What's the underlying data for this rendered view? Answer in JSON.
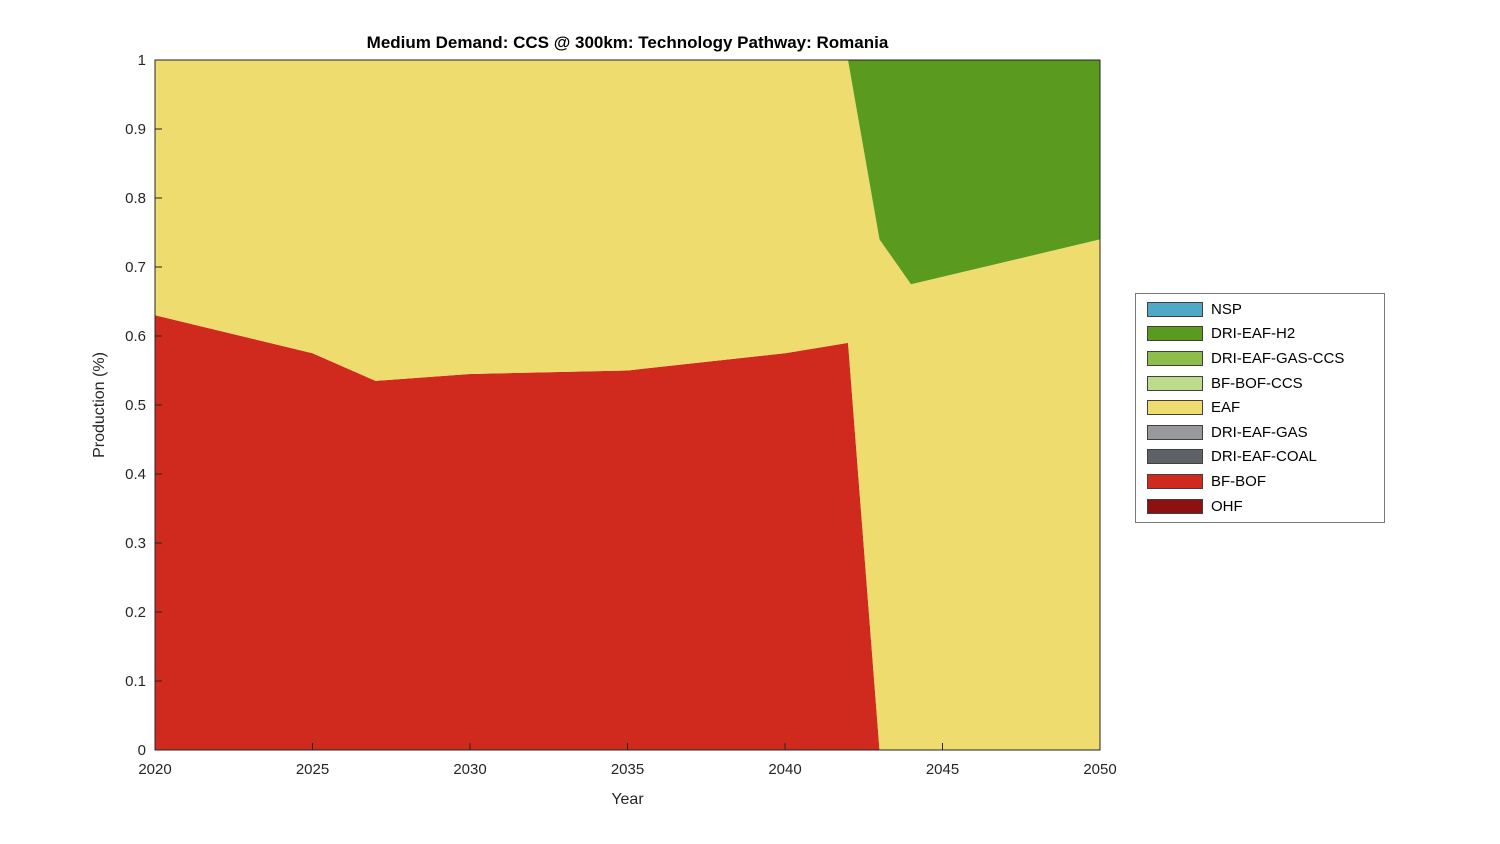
{
  "chart_data": {
    "type": "area",
    "stacked": true,
    "title": "Medium Demand: CCS @ 300km: Technology Pathway: Romania",
    "xlabel": "Year",
    "ylabel": "Production (%)",
    "xlim": [
      2020,
      2050
    ],
    "ylim": [
      0,
      1
    ],
    "xticks": [
      "2020",
      "2025",
      "2030",
      "2035",
      "2040",
      "2045",
      "2050"
    ],
    "yticks": [
      "0",
      "0.1",
      "0.2",
      "0.3",
      "0.4",
      "0.5",
      "0.6",
      "0.7",
      "0.8",
      "0.9",
      "1"
    ],
    "grid": false,
    "x": [
      2020,
      2025,
      2027,
      2030,
      2035,
      2040,
      2042,
      2043,
      2044,
      2050
    ],
    "series": [
      {
        "name": "OHF",
        "color": "#8D1111",
        "values": [
          0,
          0,
          0,
          0,
          0,
          0,
          0,
          0,
          0,
          0
        ]
      },
      {
        "name": "BF-BOF",
        "color": "#CF2A1D",
        "values": [
          0.63,
          0.575,
          0.535,
          0.545,
          0.55,
          0.575,
          0.59,
          0,
          0,
          0
        ]
      },
      {
        "name": "DRI-EAF-COAL",
        "color": "#5E6166",
        "values": [
          0,
          0,
          0,
          0,
          0,
          0,
          0,
          0,
          0,
          0
        ]
      },
      {
        "name": "DRI-EAF-GAS",
        "color": "#97999C",
        "values": [
          0,
          0,
          0,
          0,
          0,
          0,
          0,
          0,
          0,
          0
        ]
      },
      {
        "name": "EAF",
        "color": "#EFDC6E",
        "values": [
          0.37,
          0.425,
          0.465,
          0.455,
          0.45,
          0.425,
          0.41,
          0.74,
          0.675,
          0.74
        ]
      },
      {
        "name": "BF-BOF-CCS",
        "color": "#BCDC8C",
        "values": [
          0,
          0,
          0,
          0,
          0,
          0,
          0,
          0,
          0,
          0
        ]
      },
      {
        "name": "DRI-EAF-GAS-CCS",
        "color": "#8DBE4B",
        "values": [
          0,
          0,
          0,
          0,
          0,
          0,
          0,
          0,
          0,
          0
        ]
      },
      {
        "name": "DRI-EAF-H2",
        "color": "#5A9A1E",
        "values": [
          0,
          0,
          0,
          0,
          0,
          0,
          0,
          0.26,
          0.325,
          0.26
        ]
      },
      {
        "name": "NSP",
        "color": "#4FA8C5",
        "values": [
          0,
          0,
          0,
          0,
          0,
          0,
          0,
          0,
          0,
          0
        ]
      }
    ],
    "legend": {
      "position": "right-outside",
      "entries": [
        "NSP",
        "DRI-EAF-H2",
        "DRI-EAF-GAS-CCS",
        "BF-BOF-CCS",
        "EAF",
        "DRI-EAF-GAS",
        "DRI-EAF-COAL",
        "BF-BOF",
        "OHF"
      ]
    }
  }
}
